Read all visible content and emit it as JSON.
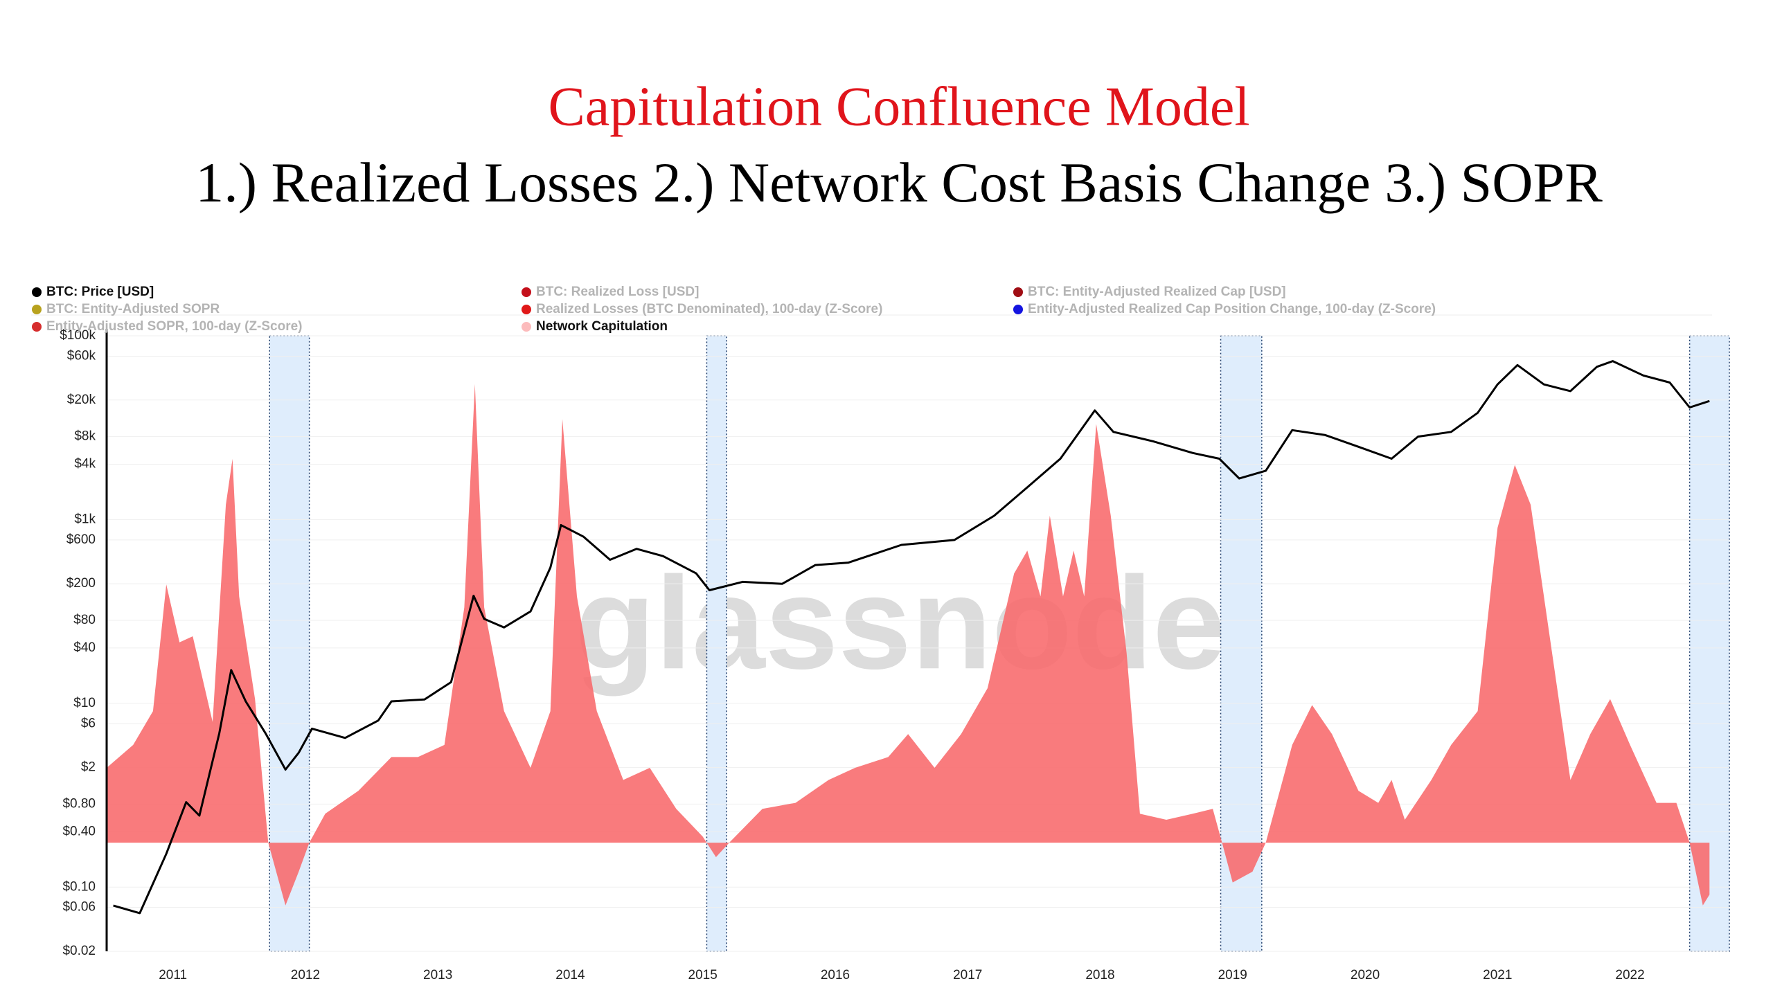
{
  "chart_data": {
    "type": "line",
    "title": "Capitulation Confluence Model",
    "subtitle": "1.) Realized Losses 2.) Network Cost Basis Change 3.) SOPR",
    "watermark": "glassnode",
    "log_scale": true,
    "grid": true,
    "xlim": [
      2010.5,
      2022.75
    ],
    "xticks": [
      2011,
      2012,
      2013,
      2014,
      2015,
      2016,
      2017,
      2018,
      2019,
      2020,
      2021,
      2022
    ],
    "ylim": [
      0.02,
      100000
    ],
    "yticks": [
      {
        "value": 0.02,
        "label": "$0.02"
      },
      {
        "value": 0.06,
        "label": "$0.06"
      },
      {
        "value": 0.1,
        "label": "$0.10"
      },
      {
        "value": 0.4,
        "label": "$0.40"
      },
      {
        "value": 0.8,
        "label": "$0.80"
      },
      {
        "value": 2,
        "label": "$2"
      },
      {
        "value": 6,
        "label": "$6"
      },
      {
        "value": 10,
        "label": "$10"
      },
      {
        "value": 40,
        "label": "$40"
      },
      {
        "value": 80,
        "label": "$80"
      },
      {
        "value": 200,
        "label": "$200"
      },
      {
        "value": 600,
        "label": "$600"
      },
      {
        "value": 1000,
        "label": "$1k"
      },
      {
        "value": 4000,
        "label": "$4k"
      },
      {
        "value": 8000,
        "label": "$8k"
      },
      {
        "value": 20000,
        "label": "$20k"
      },
      {
        "value": 60000,
        "label": "$60k"
      },
      {
        "value": 100000,
        "label": "$100k"
      }
    ],
    "y2lim": [
      -0.9,
      4.2
    ],
    "highlight_ranges": [
      [
        2011.73,
        2012.03
      ],
      [
        2015.03,
        2015.18
      ],
      [
        2018.91,
        2019.22
      ],
      [
        2022.45,
        2022.75
      ]
    ],
    "series": [
      {
        "name": "BTC: Price [USD]",
        "color": "#000000",
        "x": [
          2010.55,
          2010.75,
          2010.95,
          2011.1,
          2011.2,
          2011.35,
          2011.44,
          2011.55,
          2011.7,
          2011.85,
          2011.95,
          2012.05,
          2012.3,
          2012.55,
          2012.65,
          2012.9,
          2013.1,
          2013.27,
          2013.35,
          2013.5,
          2013.7,
          2013.85,
          2013.93,
          2014.1,
          2014.3,
          2014.5,
          2014.7,
          2014.95,
          2015.05,
          2015.3,
          2015.6,
          2015.85,
          2016.1,
          2016.5,
          2016.9,
          2017.2,
          2017.45,
          2017.7,
          2017.96,
          2018.1,
          2018.4,
          2018.7,
          2018.9,
          2019.05,
          2019.25,
          2019.45,
          2019.7,
          2019.95,
          2020.2,
          2020.4,
          2020.65,
          2020.85,
          2021.0,
          2021.15,
          2021.35,
          2021.55,
          2021.75,
          2021.87,
          2022.1,
          2022.3,
          2022.45,
          2022.6
        ],
        "values": [
          0.063,
          0.052,
          0.23,
          0.84,
          0.6,
          4.7,
          23,
          10.5,
          4.7,
          1.9,
          2.9,
          5.3,
          4.2,
          6.5,
          10.5,
          11,
          17,
          148,
          83,
          67,
          100,
          300,
          870,
          650,
          365,
          480,
          400,
          260,
          170,
          210,
          200,
          320,
          340,
          530,
          600,
          1100,
          2240,
          4600,
          15400,
          9000,
          7100,
          5300,
          4600,
          2800,
          3400,
          9400,
          8300,
          6200,
          4600,
          8000,
          9000,
          14500,
          29600,
          48000,
          29600,
          25000,
          46000,
          53000,
          37000,
          31000,
          16600,
          19500
        ]
      },
      {
        "name": "Network Capitulation",
        "color": "#f8696b",
        "axis": "y2",
        "kind": "area",
        "x": [
          2010.5,
          2010.7,
          2010.85,
          2010.95,
          2011.05,
          2011.15,
          2011.3,
          2011.4,
          2011.45,
          2011.5,
          2011.62,
          2011.72,
          2011.85,
          2011.95,
          2012.03,
          2012.15,
          2012.4,
          2012.65,
          2012.85,
          2013.05,
          2013.2,
          2013.28,
          2013.35,
          2013.5,
          2013.7,
          2013.85,
          2013.94,
          2014.05,
          2014.2,
          2014.4,
          2014.6,
          2014.8,
          2015.0,
          2015.1,
          2015.2,
          2015.45,
          2015.7,
          2015.95,
          2016.15,
          2016.4,
          2016.55,
          2016.75,
          2016.95,
          2017.15,
          2017.35,
          2017.45,
          2017.55,
          2017.62,
          2017.72,
          2017.8,
          2017.88,
          2017.97,
          2018.08,
          2018.2,
          2018.3,
          2018.5,
          2018.7,
          2018.85,
          2018.92,
          2019.0,
          2019.15,
          2019.25,
          2019.45,
          2019.6,
          2019.75,
          2019.95,
          2020.1,
          2020.2,
          2020.3,
          2020.5,
          2020.65,
          2020.85,
          2021.0,
          2021.13,
          2021.25,
          2021.4,
          2021.55,
          2021.7,
          2021.85,
          2022.0,
          2022.2,
          2022.35,
          2022.45,
          2022.55,
          2022.6
        ],
        "values": [
          0.62,
          0.81,
          1.09,
          2.14,
          1.66,
          1.71,
          1.0,
          2.8,
          3.18,
          2.04,
          1.19,
          0,
          -0.52,
          -0.24,
          0,
          0.24,
          0.43,
          0.71,
          0.71,
          0.81,
          1.95,
          3.8,
          1.95,
          1.09,
          0.62,
          1.09,
          3.51,
          2.04,
          1.09,
          0.52,
          0.62,
          0.28,
          0.05,
          -0.12,
          0,
          0.28,
          0.33,
          0.52,
          0.62,
          0.71,
          0.9,
          0.62,
          0.9,
          1.28,
          2.23,
          2.42,
          2.04,
          2.71,
          2.04,
          2.42,
          2.04,
          3.47,
          2.71,
          1.57,
          0.24,
          0.19,
          0.24,
          0.28,
          0,
          -0.33,
          -0.24,
          0,
          0.81,
          1.14,
          0.9,
          0.43,
          0.33,
          0.52,
          0.19,
          0.52,
          0.81,
          1.09,
          2.61,
          3.13,
          2.8,
          1.66,
          0.52,
          0.9,
          1.19,
          0.81,
          0.33,
          0.33,
          0,
          -0.52,
          -0.43
        ]
      }
    ],
    "inactive_series": [
      {
        "name": "BTC: Entity-Adjusted SOPR",
        "color": "#b8a21e"
      },
      {
        "name": "Entity-Adjusted SOPR, 100-day (Z-Score)",
        "color": "#d62d2d"
      },
      {
        "name": "BTC: Realized Loss [USD]",
        "color": "#c4101b"
      },
      {
        "name": "Realized Losses (BTC Denominated), 100-day (Z-Score)",
        "color": "#e01818"
      },
      {
        "name": "BTC: Entity-Adjusted Realized Cap [USD]",
        "color": "#a00d14"
      },
      {
        "name": "Entity-Adjusted Realized Cap Position Change, 100-day (Z-Score)",
        "color": "#1414e0"
      }
    ]
  }
}
